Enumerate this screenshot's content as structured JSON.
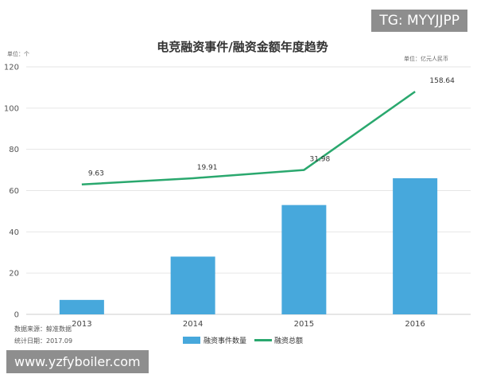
{
  "chart_data": {
    "type": "bar",
    "title": "电竞融资事件/融资金额年度趋势",
    "left_unit": "单位：个",
    "right_unit": "单位：亿元人民币",
    "categories": [
      "2013",
      "2014",
      "2015",
      "2016"
    ],
    "ylim": [
      0,
      120
    ],
    "y_ticks": [
      0,
      20,
      40,
      60,
      80,
      100,
      120
    ],
    "grid": true,
    "legend_placement": "bottom",
    "series": [
      {
        "name": "融资事件数量",
        "kind": "bar",
        "color": "#47a8dc",
        "values": [
          7,
          28,
          53,
          66
        ]
      },
      {
        "name": "融资总额",
        "kind": "line",
        "color": "#2aa86e",
        "values": [
          63,
          66,
          70,
          108
        ],
        "data_labels": [
          "9.63",
          "19.91",
          "31.98",
          "158.64"
        ]
      }
    ],
    "source": "数据来源：鲸准数据",
    "date": "统计日期：2017.09"
  },
  "watermarks": {
    "top": "TG: MYYJJPP",
    "bottom": "www.yzfyboiler.com"
  }
}
